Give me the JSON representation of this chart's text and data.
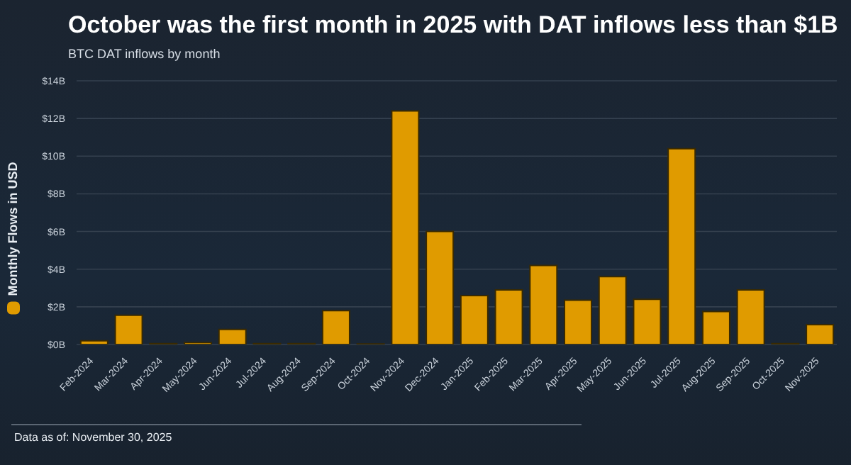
{
  "chart_data": {
    "type": "bar",
    "title": "October was the first month in 2025 with DAT inflows less than $1B",
    "subtitle": "BTC DAT inflows by month",
    "categories": [
      "Feb-2024",
      "Mar-2024",
      "Apr-2024",
      "May-2024",
      "Jun-2024",
      "Jul-2024",
      "Aug-2024",
      "Sep-2024",
      "Oct-2024",
      "Nov-2024",
      "Dec-2024",
      "Jan-2025",
      "Feb-2025",
      "Mar-2025",
      "Apr-2025",
      "May-2025",
      "Jun-2025",
      "Jul-2025",
      "Aug-2025",
      "Sep-2025",
      "Oct-2025",
      "Nov-2025"
    ],
    "series": [
      {
        "name": "Monthly Flows in USD",
        "color": "#e09b00",
        "values": [
          0.2,
          1.55,
          0.05,
          0.1,
          0.8,
          0.05,
          0.05,
          1.8,
          0.03,
          12.4,
          6.0,
          2.6,
          2.9,
          4.2,
          2.35,
          3.6,
          2.4,
          10.4,
          1.75,
          2.9,
          0.05,
          1.05
        ]
      }
    ],
    "ylim": [
      0,
      14
    ],
    "yticks": [
      {
        "value": 0,
        "label": "$0B"
      },
      {
        "value": 2,
        "label": "$2B"
      },
      {
        "value": 4,
        "label": "$4B"
      },
      {
        "value": 6,
        "label": "$6B"
      },
      {
        "value": 8,
        "label": "$8B"
      },
      {
        "value": 10,
        "label": "$10B"
      },
      {
        "value": 12,
        "label": "$12B"
      },
      {
        "value": 14,
        "label": "$14B"
      }
    ],
    "grid": "y",
    "legend": "left",
    "annotations": [
      "Data as of: November 30, 2025"
    ]
  }
}
